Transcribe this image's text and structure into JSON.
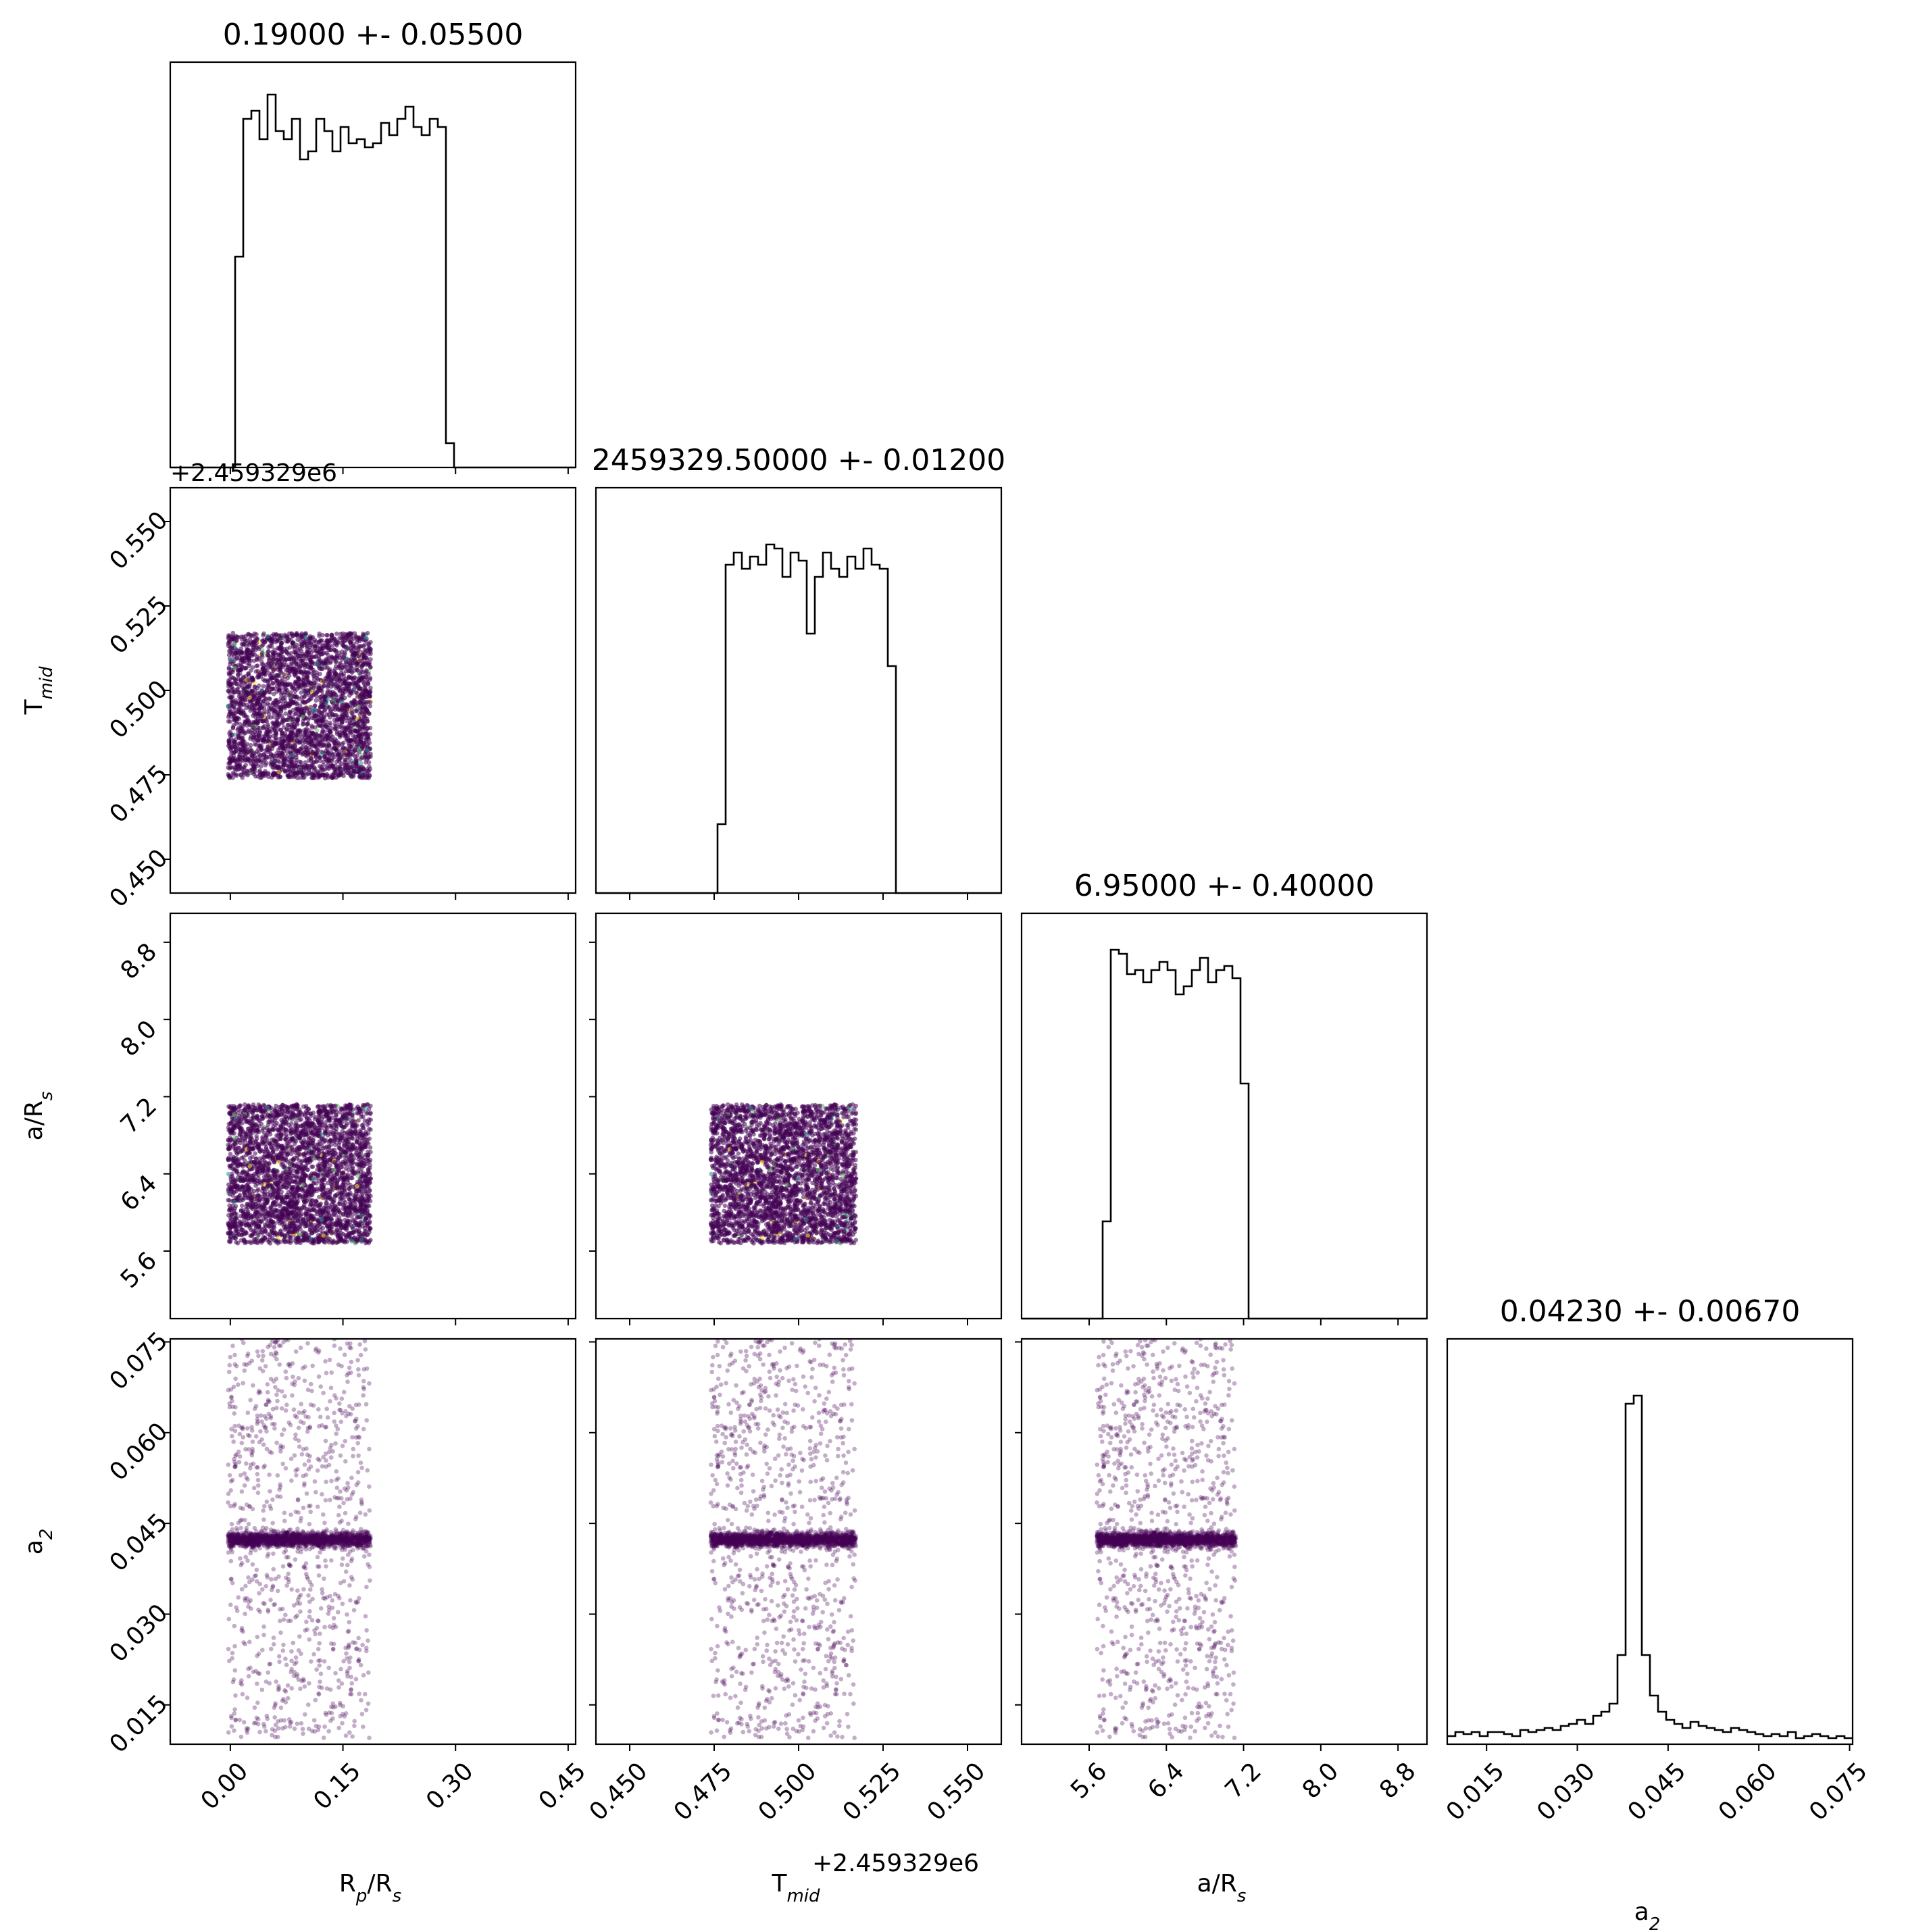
{
  "chart_data": {
    "type": "scatter",
    "subtype": "corner-plot",
    "parameters": [
      {
        "key": "rprs",
        "title": "0.19000 +- 0.05500",
        "label_main": "R",
        "label_sub": "p",
        "label_rest": "/R",
        "label_sub2": "s",
        "range": [
          -0.08,
          0.46
        ],
        "ticks": [
          "0.00",
          "0.15",
          "0.30",
          "0.45"
        ],
        "tick_values": [
          0.0,
          0.15,
          0.3,
          0.45
        ],
        "sample_range": [
          -0.003,
          0.187
        ],
        "hist": [
          0,
          0,
          0,
          0,
          0,
          0,
          0,
          0,
          0.52,
          0.86,
          0.88,
          0.81,
          0.92,
          0.83,
          0.81,
          0.86,
          0.76,
          0.78,
          0.86,
          0.83,
          0.78,
          0.84,
          0.8,
          0.81,
          0.79,
          0.8,
          0.85,
          0.82,
          0.86,
          0.89,
          0.84,
          0.82,
          0.86,
          0.84,
          0.06,
          0,
          0,
          0,
          0,
          0,
          0,
          0,
          0,
          0,
          0,
          0,
          0,
          0,
          0,
          0
        ]
      },
      {
        "key": "tmid",
        "title": "2459329.50000 +- 0.01200",
        "label_main": "T",
        "label_sub": "mid",
        "label_rest": "",
        "label_sub2": "",
        "offset_text": "+2.459329e6",
        "range": [
          0.44,
          0.56
        ],
        "ticks": [
          "0.450",
          "0.475",
          "0.500",
          "0.525",
          "0.550"
        ],
        "tick_values": [
          0.45,
          0.475,
          0.5,
          0.525,
          0.55
        ],
        "sample_range": [
          0.474,
          0.517
        ],
        "hist": [
          0,
          0,
          0,
          0,
          0,
          0,
          0,
          0,
          0,
          0,
          0,
          0,
          0,
          0,
          0,
          0.17,
          0.81,
          0.84,
          0.8,
          0.83,
          0.81,
          0.86,
          0.85,
          0.78,
          0.84,
          0.82,
          0.64,
          0.78,
          0.84,
          0.8,
          0.78,
          0.83,
          0.8,
          0.85,
          0.81,
          0.8,
          0.56,
          0,
          0,
          0,
          0,
          0,
          0,
          0,
          0,
          0,
          0,
          0,
          0,
          0
        ]
      },
      {
        "key": "ars",
        "title": "6.95000 +- 0.40000",
        "label_main": "a/R",
        "label_sub": "s",
        "label_rest": "",
        "label_sub2": "",
        "range": [
          4.9,
          9.1
        ],
        "ticks": [
          "5.6",
          "6.4",
          "7.2",
          "8.0",
          "8.8"
        ],
        "tick_values": [
          5.6,
          6.4,
          7.2,
          8.0,
          8.8
        ],
        "sample_range": [
          5.68,
          7.12
        ],
        "hist": [
          0,
          0,
          0,
          0,
          0,
          0,
          0,
          0,
          0,
          0,
          0.24,
          0.91,
          0.9,
          0.85,
          0.86,
          0.83,
          0.86,
          0.88,
          0.86,
          0.8,
          0.82,
          0.86,
          0.89,
          0.83,
          0.86,
          0.87,
          0.84,
          0.58,
          0,
          0,
          0,
          0,
          0,
          0,
          0,
          0,
          0,
          0,
          0,
          0,
          0,
          0,
          0,
          0,
          0,
          0,
          0,
          0,
          0,
          0
        ]
      },
      {
        "key": "a2",
        "title": "0.04230 +- 0.00670",
        "label_main": "a",
        "label_sub": "2",
        "label_rest": "",
        "label_sub2": "",
        "range": [
          0.0085,
          0.0755
        ],
        "ticks": [
          "0.015",
          "0.030",
          "0.045",
          "0.060",
          "0.075"
        ],
        "tick_values": [
          0.015,
          0.03,
          0.045,
          0.06,
          0.075
        ],
        "sample_range": [
          0.0095,
          0.0755
        ],
        "hist": [
          0.02,
          0.03,
          0.025,
          0.03,
          0.02,
          0.03,
          0.03,
          0.025,
          0.02,
          0.035,
          0.03,
          0.035,
          0.04,
          0.035,
          0.045,
          0.05,
          0.06,
          0.05,
          0.07,
          0.08,
          0.1,
          0.22,
          0.84,
          0.86,
          0.22,
          0.12,
          0.08,
          0.06,
          0.05,
          0.04,
          0.055,
          0.045,
          0.04,
          0.035,
          0.03,
          0.04,
          0.035,
          0.03,
          0.025,
          0.02,
          0.025,
          0.02,
          0.03,
          0.015,
          0.02,
          0.025,
          0.02,
          0.015,
          0.02,
          0.015
        ]
      }
    ],
    "point_color": "#440154",
    "highlight_colors": [
      "#fde725",
      "#5ec962",
      "#21918c"
    ],
    "hist_color": "#000000",
    "grid": false,
    "legend": "none"
  }
}
